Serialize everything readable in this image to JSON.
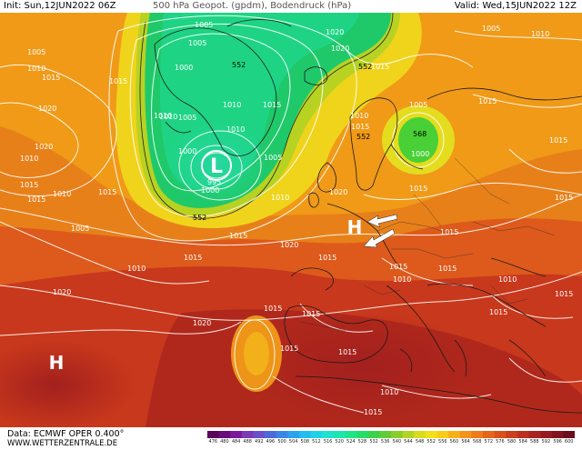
{
  "header": {
    "init": "Init: Sun,12JUN2022 06Z",
    "title": "500 hPa Geopot. (gpdm), Bodendruck (hPa)",
    "valid": "Valid: Wed,15JUN2022 12Z"
  },
  "footer": {
    "data": "Data: ECMWF OPER 0.400°",
    "url": "WWW.WETTERZENTRALE.DE"
  },
  "colorbar": {
    "ticks": [
      "476",
      "480",
      "484",
      "488",
      "492",
      "496",
      "500",
      "504",
      "508",
      "512",
      "516",
      "520",
      "524",
      "528",
      "532",
      "536",
      "540",
      "544",
      "548",
      "552",
      "556",
      "560",
      "564",
      "568",
      "572",
      "576",
      "580",
      "584",
      "588",
      "592",
      "596",
      "600"
    ],
    "colors": [
      "#5b005b",
      "#6b0a7a",
      "#7a1a9a",
      "#7a3ab4",
      "#6a50c8",
      "#4a6ad8",
      "#3a86e4",
      "#2aa2ee",
      "#22bdf0",
      "#1fd2e8",
      "#1ee2cf",
      "#1ce6ac",
      "#1ee48a",
      "#26dc68",
      "#3ad24a",
      "#62cc38",
      "#8acc2a",
      "#b2d422",
      "#d8dc1e",
      "#f0e01a",
      "#f8cc18",
      "#f8b018",
      "#f49418",
      "#ee7a18",
      "#e46418",
      "#da501a",
      "#cc3e1c",
      "#bc301e",
      "#aa2420",
      "#961a20",
      "#821220",
      "#6e0c1e"
    ]
  },
  "map": {
    "pressure_centers": [
      {
        "letter": "L",
        "name": "low-center"
      },
      {
        "letter": "H",
        "name": "high-center-europe"
      },
      {
        "letter": "H",
        "name": "high-center-atlantic"
      }
    ],
    "geopotential_labels": [
      "552",
      "552",
      "552",
      "568",
      "552"
    ],
    "pressure_labels": [
      "1005",
      "1010",
      "1020",
      "1005",
      "1000",
      "1010",
      "1005",
      "1010",
      "1000",
      "995",
      "1000",
      "1005",
      "1015",
      "1010",
      "1015",
      "1010",
      "1020",
      "1005",
      "1010",
      "1015",
      "1010",
      "1015",
      "1010",
      "1020",
      "1015",
      "1010",
      "1015",
      "1015",
      "1020",
      "1015",
      "1005",
      "1015",
      "1005",
      "1020",
      "1010",
      "1015",
      "1000",
      "1005",
      "1010",
      "1015",
      "1020",
      "1015",
      "1015",
      "1020",
      "1015",
      "1015",
      "1015",
      "1015",
      "1015",
      "1010",
      "1010",
      "1015",
      "1015",
      "1020",
      "1015",
      "1015",
      "1015",
      "1015",
      "1010",
      "1015"
    ]
  }
}
